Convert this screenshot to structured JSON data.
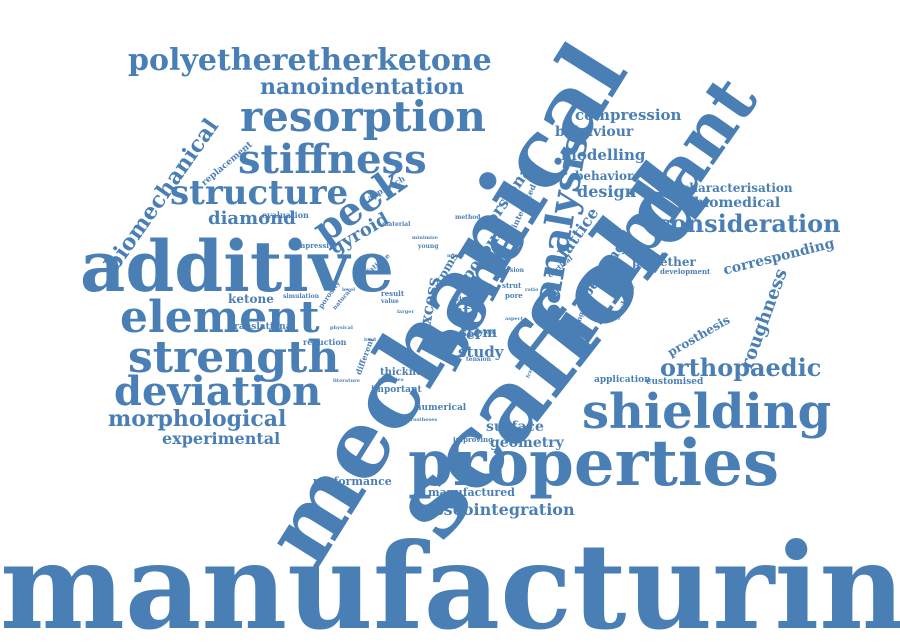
{
  "color": "#4a7fb5",
  "words": [
    "manufacturing",
    "mechanical",
    "scaffold",
    "implant",
    "bone",
    "properties",
    "additive",
    "shielding",
    "analysis",
    "element",
    "strength",
    "deviation",
    "resorption",
    "stiffness",
    "structure",
    "peek",
    "polyetheretherketone",
    "nanoindentation",
    "morphological",
    "experimental",
    "orthopaedic",
    "consideration",
    "biomechanical",
    "osseointegration",
    "corresponding",
    "roughness",
    "prosthesis",
    "diamond",
    "compression",
    "behaviour",
    "modelling",
    "behavior",
    "design",
    "lattice",
    "characterisation",
    "biomedical",
    "torsional",
    "porous",
    "tpms",
    "gyroid",
    "ketone",
    "translational",
    "thickness",
    "numerical",
    "surface",
    "geometry",
    "study",
    "model",
    "stem",
    "str",
    "excess",
    "performance",
    "manufactured",
    "polyether",
    "development",
    "application",
    "customised",
    "bending",
    "evaluation",
    "compressive",
    "replacement",
    "approach",
    "material",
    "young",
    "minimize",
    "method",
    "integrated",
    "mimic",
    "cortical",
    "sawbone",
    "size",
    "pore",
    "strut",
    "yield",
    "torsion",
    "type",
    "ether",
    "tension",
    "reduction",
    "simulation",
    "porosity",
    "result",
    "value",
    "larger",
    "physical",
    "literature",
    "important",
    "different",
    "prostheses",
    "improving",
    "fracture",
    "reducing",
    "load",
    "aspect",
    "ratio",
    "fatigue",
    "natural",
    "level",
    "activities"
  ]
}
